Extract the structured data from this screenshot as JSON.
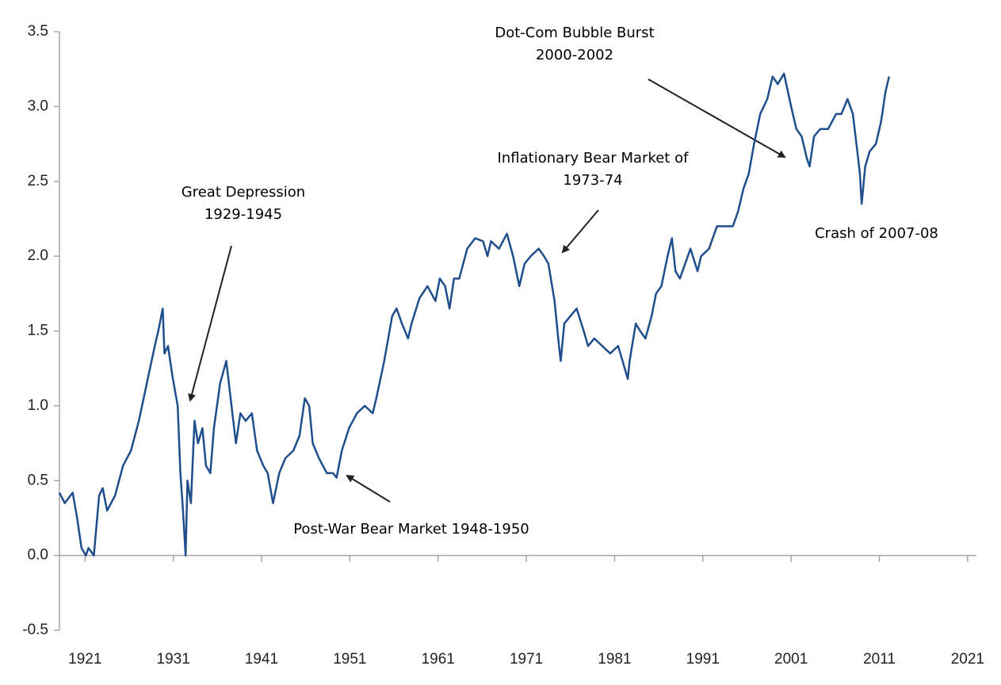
{
  "chart_data": {
    "type": "line",
    "x": [
      1918.1,
      1918.7,
      1919.6,
      1920.1,
      1920.6,
      1921.1,
      1921.4,
      1922.0,
      1922.6,
      1923.0,
      1923.5,
      1924.4,
      1925.3,
      1926.2,
      1927.1,
      1928.0,
      1928.9,
      1929.3,
      1929.8,
      1930.0,
      1930.4,
      1930.9,
      1931.5,
      1931.8,
      1932.1,
      1932.4,
      1932.6,
      1933.0,
      1933.4,
      1933.8,
      1934.3,
      1934.7,
      1935.2,
      1935.6,
      1936.3,
      1937.0,
      1937.6,
      1938.1,
      1938.6,
      1939.2,
      1939.9,
      1940.5,
      1941.2,
      1941.7,
      1942.3,
      1943.0,
      1943.7,
      1944.6,
      1945.3,
      1945.9,
      1946.4,
      1946.8,
      1947.5,
      1948.4,
      1949.1,
      1949.5,
      1950.1,
      1950.9,
      1951.8,
      1952.7,
      1953.6,
      1954.0,
      1954.9,
      1955.8,
      1956.3,
      1956.9,
      1957.6,
      1958.0,
      1958.9,
      1959.8,
      1960.7,
      1961.2,
      1961.8,
      1962.3,
      1962.8,
      1963.4,
      1964.3,
      1965.2,
      1966.1,
      1966.6,
      1967.0,
      1967.9,
      1968.8,
      1969.5,
      1970.2,
      1970.8,
      1971.5,
      1972.4,
      1973.0,
      1973.5,
      1974.2,
      1974.7,
      1974.9,
      1975.3,
      1976.0,
      1976.7,
      1977.5,
      1978.0,
      1978.7,
      1979.6,
      1980.5,
      1981.4,
      1981.9,
      1982.5,
      1982.7,
      1983.4,
      1983.9,
      1984.5,
      1985.2,
      1985.7,
      1986.3,
      1987.0,
      1987.5,
      1987.9,
      1988.4,
      1989.0,
      1989.6,
      1990.4,
      1990.8,
      1991.7,
      1992.6,
      1993.5,
      1994.4,
      1995.0,
      1995.6,
      1996.2,
      1996.8,
      1997.5,
      1998.3,
      1998.9,
      1999.5,
      2000.2,
      2001.0,
      2001.6,
      2002.2,
      2002.8,
      2003.1,
      2003.6,
      2004.3,
      2005.2,
      2006.1,
      2006.7,
      2007.4,
      2008.0,
      2008.5,
      2008.8,
      2009.0,
      2009.4,
      2009.9,
      2010.6,
      2011.2,
      2011.7,
      2012.1
    ],
    "values": [
      0.42,
      0.35,
      0.42,
      0.25,
      0.05,
      0.0,
      0.05,
      0.0,
      0.4,
      0.45,
      0.3,
      0.4,
      0.6,
      0.7,
      0.9,
      1.15,
      1.4,
      1.5,
      1.65,
      1.35,
      1.4,
      1.2,
      1.0,
      0.55,
      0.3,
      0.0,
      0.5,
      0.35,
      0.9,
      0.75,
      0.85,
      0.6,
      0.55,
      0.85,
      1.15,
      1.3,
      1.0,
      0.75,
      0.95,
      0.9,
      0.95,
      0.7,
      0.6,
      0.55,
      0.35,
      0.55,
      0.65,
      0.7,
      0.8,
      1.05,
      1.0,
      0.75,
      0.65,
      0.55,
      0.55,
      0.52,
      0.7,
      0.85,
      0.95,
      1.0,
      0.95,
      1.05,
      1.3,
      1.6,
      1.65,
      1.55,
      1.45,
      1.55,
      1.72,
      1.8,
      1.7,
      1.85,
      1.8,
      1.65,
      1.85,
      1.85,
      2.05,
      2.12,
      2.1,
      2.0,
      2.1,
      2.05,
      2.15,
      2.0,
      1.8,
      1.95,
      2.0,
      2.05,
      2.0,
      1.95,
      1.7,
      1.4,
      1.3,
      1.55,
      1.6,
      1.65,
      1.5,
      1.4,
      1.45,
      1.4,
      1.35,
      1.4,
      1.3,
      1.18,
      1.3,
      1.55,
      1.5,
      1.45,
      1.6,
      1.75,
      1.8,
      2.0,
      2.12,
      1.9,
      1.85,
      1.95,
      2.05,
      1.9,
      2.0,
      2.05,
      2.2,
      2.2,
      2.2,
      2.3,
      2.45,
      2.55,
      2.75,
      2.95,
      3.05,
      3.2,
      3.15,
      3.22,
      3.0,
      2.85,
      2.8,
      2.65,
      2.6,
      2.8,
      2.85,
      2.85,
      2.95,
      2.95,
      3.05,
      2.95,
      2.7,
      2.55,
      2.35,
      2.6,
      2.7,
      2.75,
      2.9,
      3.1,
      3.2
    ],
    "color": "#1f4e8c",
    "xlim": [
      1918.1,
      2022
    ],
    "xticks": [
      1921,
      1931,
      1941,
      1951,
      1961,
      1971,
      1981,
      1991,
      2001,
      2011,
      2021
    ],
    "ylim": [
      -0.5,
      3.5
    ],
    "yticks": [
      -0.5,
      {
        "value": 0,
        "label": "0.0"
      },
      0.5,
      {
        "value": 1,
        "label": "1.0"
      },
      1.5,
      {
        "value": 2,
        "label": "2.0"
      },
      2.5,
      {
        "value": 3,
        "label": "3.0"
      },
      3.5
    ],
    "grid": false,
    "annotations": [
      {
        "lines": [
          "Great Depression",
          "1929-1945"
        ]
      },
      {
        "lines": [
          "Post-War Bear Market 1948-1950"
        ]
      },
      {
        "lines": [
          "Inflationary Bear Market of",
          "1973-74"
        ]
      },
      {
        "lines": [
          "Dot-Com Bubble Burst",
          "2000-2002"
        ]
      },
      {
        "lines": [
          "Crash of 2007-08"
        ]
      }
    ]
  }
}
